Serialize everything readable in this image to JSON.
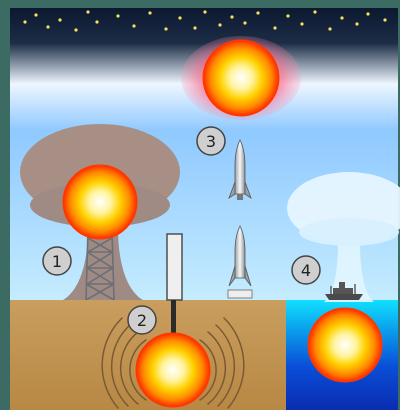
{
  "diagram": {
    "labels": [
      {
        "id": "atmospheric-test",
        "number": "1"
      },
      {
        "id": "underground-test",
        "number": "2"
      },
      {
        "id": "exoatmospheric-test",
        "number": "3"
      },
      {
        "id": "underwater-test",
        "number": "4"
      }
    ]
  },
  "colors": {
    "frame": "#3c6b63",
    "sky_top": "#0c1a2f",
    "sky_bottom": "#c5ecff",
    "ground": "#c79a55",
    "sea": "#1e66e6",
    "mushroom_cloud": "#a88f86",
    "water_plume": "#dff4ff",
    "fireball_core": "#ffffff",
    "fireball_mid": "#ffd200",
    "fireball_edge": "#ff3000",
    "stars": "#f4e25a"
  },
  "icons": [
    "star-icon",
    "fireball-icon",
    "rocket-icon",
    "ship-icon",
    "tower-icon"
  ]
}
